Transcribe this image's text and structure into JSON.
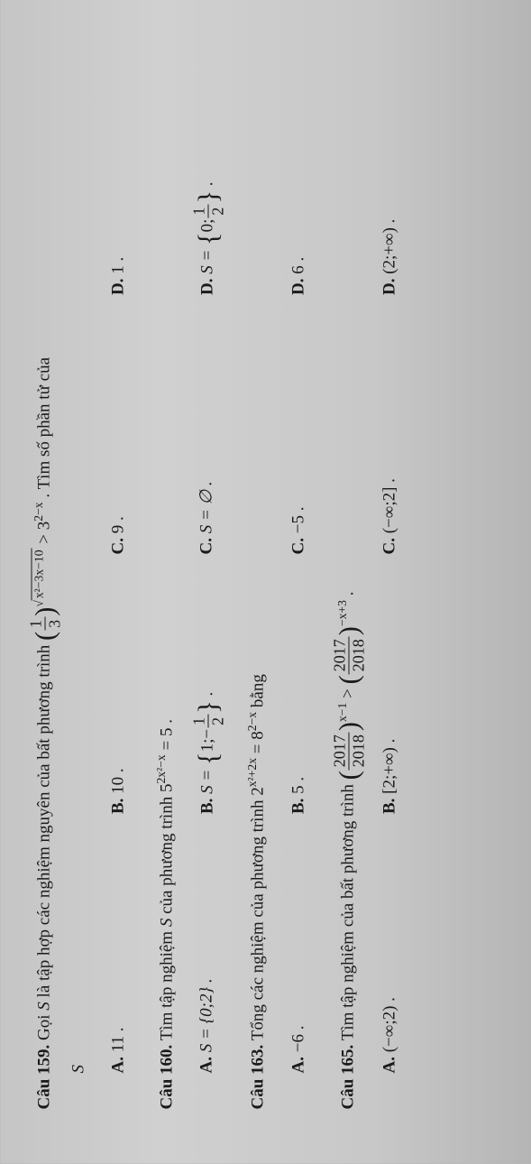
{
  "q159": {
    "label": "Câu 159.",
    "text_pre": "Gọi ",
    "S": "S",
    "text_mid": " là tập hợp các nghiệm nguyên của bất phương trình ",
    "base_num": "1",
    "base_den": "3",
    "exp_radicand": "x²−3x−10",
    "gt": " > 3",
    "rhs_exp": "2−x",
    "text_tail": " . Tìm số phần tử của",
    "S_line": "S",
    "opts": {
      "A": {
        "label": "A.",
        "val": "11 ."
      },
      "B": {
        "label": "B.",
        "val": "10 ."
      },
      "C": {
        "label": "C.",
        "val": "9 ."
      },
      "D": {
        "label": "D.",
        "val": "1 ."
      }
    }
  },
  "q160": {
    "label": "Câu 160.",
    "text_pre": "Tìm tập nghiệm ",
    "S": "S",
    "text_mid": " của phương trình 5",
    "exp": "2x²−x",
    "eq": " = 5 .",
    "opts": {
      "A": {
        "label": "A.",
        "pre": "S = {0;2} ."
      },
      "B": {
        "label": "B.",
        "pre": "S = ",
        "n1": "1",
        "sep": ";−",
        "fn": "1",
        "fd": "2",
        "post": " ."
      },
      "C": {
        "label": "C.",
        "pre": "S = ∅ ."
      },
      "D": {
        "label": "D.",
        "pre": "S = ",
        "n1": "0",
        "sep": ";",
        "fn": "1",
        "fd": "2",
        "post": " ."
      }
    }
  },
  "q163": {
    "label": "Câu 163.",
    "text_pre": "Tổng các nghiệm của phương trình 2",
    "exp1": "x²+2x",
    "mid": " = 8",
    "exp2": "2−x",
    "tail": " bằng",
    "opts": {
      "A": {
        "label": "A.",
        "val": "−6 ."
      },
      "B": {
        "label": "B.",
        "val": "5 ."
      },
      "C": {
        "label": "C.",
        "val": "−5 ."
      },
      "D": {
        "label": "D.",
        "val": "6 ."
      }
    }
  },
  "q165": {
    "label": "Câu 165.",
    "text_pre": "Tìm tập nghiệm của bất phương trình ",
    "fn": "2017",
    "fd": "2018",
    "exp1": "x−1",
    "gt": " > ",
    "exp2": "−x+3",
    "tail": " .",
    "opts": {
      "A": {
        "label": "A.",
        "val": "(−∞;2) ."
      },
      "B": {
        "label": "B.",
        "val": "[2;+∞) ."
      },
      "C": {
        "label": "C.",
        "val": "(−∞;2] ."
      },
      "D": {
        "label": "D.",
        "val": "(2;+∞) ."
      }
    }
  }
}
